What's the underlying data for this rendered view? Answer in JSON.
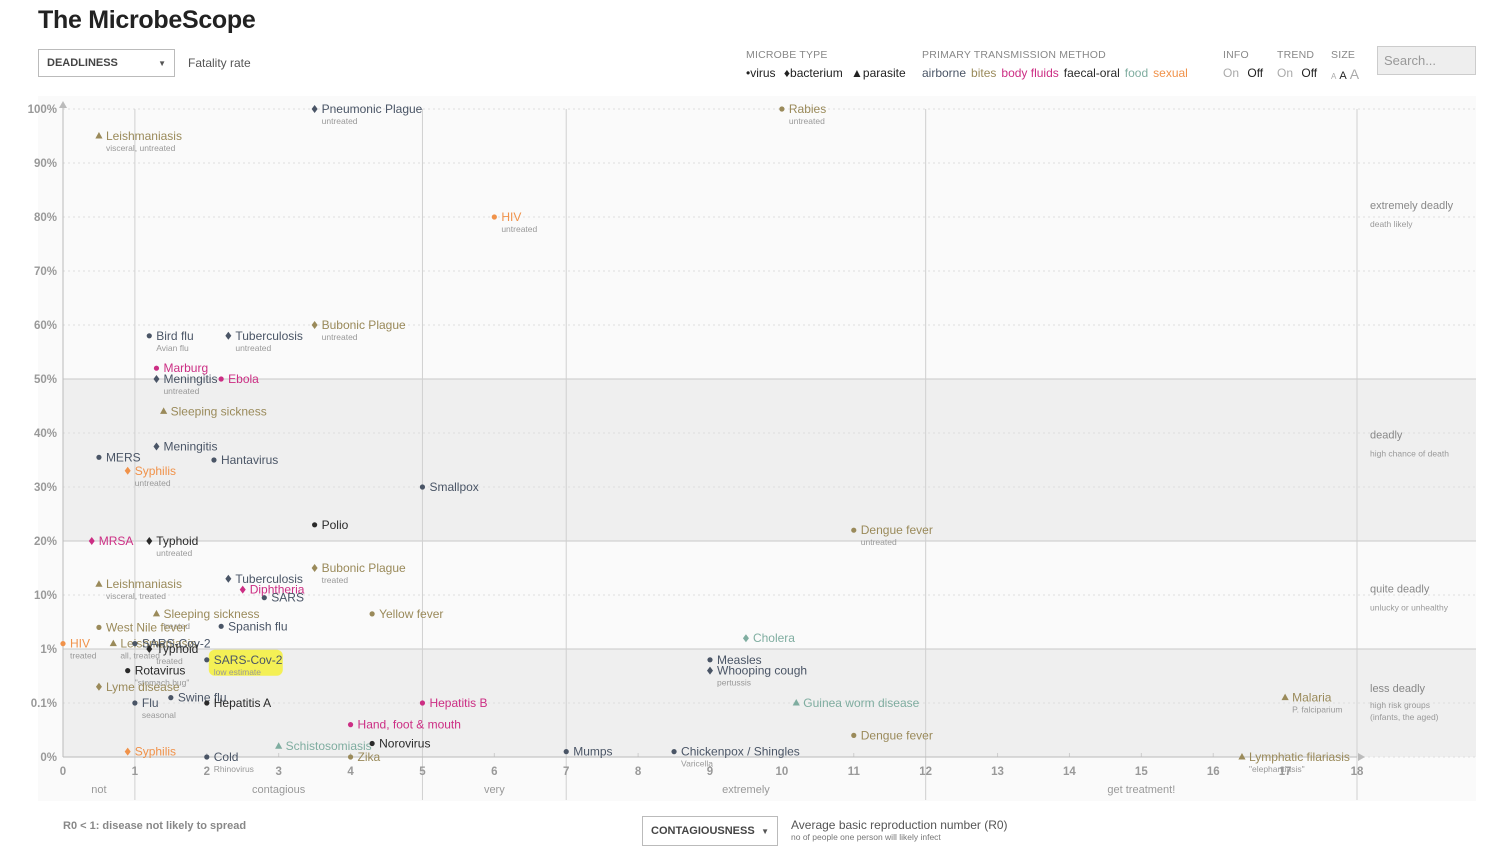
{
  "page": {
    "title": "The MicrobeScope"
  },
  "y_select": {
    "label": "DEADLINESS",
    "description": "Fatality rate"
  },
  "x_select": {
    "label": "CONTAGIOUSNESS",
    "description": "Average basic reproduction number (R0)",
    "description_sub": "no of people one person will likely infect"
  },
  "r0_note": "R0 < 1: disease not likely to spread",
  "controls": {
    "microbe_type": {
      "heading": "MICROBE TYPE",
      "items": [
        "•virus",
        "♦bacterium",
        "▲parasite"
      ]
    },
    "transmission": {
      "heading": "PRIMARY TRANSMISSION METHOD",
      "items": [
        {
          "label": "airborne",
          "color": "#4a5566"
        },
        {
          "label": "bites",
          "color": "#9a8a5a"
        },
        {
          "label": "body fluids",
          "color": "#cc2e84"
        },
        {
          "label": "faecal-oral",
          "color": "#2a2a2a"
        },
        {
          "label": "food",
          "color": "#7fada0"
        },
        {
          "label": "sexual",
          "color": "#f0924a"
        }
      ]
    },
    "info": {
      "heading": "INFO",
      "on": "On",
      "off": "Off"
    },
    "trend": {
      "heading": "TREND",
      "on": "On",
      "off": "Off"
    },
    "size": {
      "heading": "SIZE",
      "items": [
        "A",
        "A",
        "A"
      ]
    },
    "search_placeholder": "Search..."
  },
  "chart_data": {
    "type": "scatter",
    "x_ticks": [
      "0",
      "1",
      "2",
      "3",
      "4",
      "5",
      "6",
      "7",
      "8",
      "9",
      "10",
      "11",
      "12",
      "13",
      "14",
      "15",
      "16",
      "17",
      "18"
    ],
    "y_ticks": [
      "0%",
      "0.1%",
      "1%",
      "10%",
      "20%",
      "30%",
      "40%",
      "50%",
      "60%",
      "70%",
      "80%",
      "90%",
      "100%"
    ],
    "x_range": [
      0,
      18
    ],
    "x_bands": [
      "not",
      "contagious",
      "very",
      "extremely",
      "get treatment!"
    ],
    "y_bands": [
      {
        "label": "extremely deadly",
        "sub": "death likely"
      },
      {
        "label": "deadly",
        "sub": "high chance of death"
      },
      {
        "label": "quite deadly",
        "sub": "unlucky or unhealthy"
      },
      {
        "label": "less deadly",
        "sub": "high risk groups (infants, the aged)"
      }
    ],
    "points": [
      {
        "name": "Pneumonic Plague",
        "sub": "untreated",
        "x": 3.5,
        "y": "100%",
        "yv": 12,
        "type": "bacterium",
        "tx": "airborne"
      },
      {
        "name": "Rabies",
        "sub": "untreated",
        "x": 10,
        "y": "100%",
        "yv": 12,
        "type": "virus",
        "tx": "bites"
      },
      {
        "name": "Leishmaniasis",
        "sub": "visceral, untreated",
        "x": 0.5,
        "y": "95%",
        "yv": 11.5,
        "type": "parasite",
        "tx": "bites"
      },
      {
        "name": "HIV",
        "sub": "untreated",
        "x": 6,
        "y": "80%",
        "yv": 10,
        "type": "virus",
        "tx": "sexual"
      },
      {
        "name": "Bubonic Plague",
        "sub": "untreated",
        "x": 3.5,
        "y": "60%",
        "yv": 8,
        "type": "bacterium",
        "tx": "bites"
      },
      {
        "name": "Bird flu",
        "sub": "Avian flu",
        "x": 1.2,
        "y": "58%",
        "yv": 7.8,
        "type": "virus",
        "tx": "airborne"
      },
      {
        "name": "Tuberculosis",
        "sub": "untreated",
        "x": 2.3,
        "y": "58%",
        "yv": 7.8,
        "type": "bacterium",
        "tx": "airborne"
      },
      {
        "name": "Marburg",
        "sub": "",
        "x": 1.3,
        "y": "52%",
        "yv": 7.2,
        "type": "virus",
        "tx": "body fluids"
      },
      {
        "name": "Meningitis",
        "sub": "untreated",
        "x": 1.3,
        "y": "50%",
        "yv": 7,
        "type": "bacterium",
        "tx": "airborne"
      },
      {
        "name": "Ebola",
        "sub": "",
        "x": 2.2,
        "y": "50%",
        "yv": 7,
        "type": "virus",
        "tx": "body fluids"
      },
      {
        "name": "Sleeping sickness",
        "sub": "",
        "x": 1.4,
        "y": "44%",
        "yv": 6.4,
        "type": "parasite",
        "tx": "bites"
      },
      {
        "name": "Meningitis",
        "sub": "",
        "x": 1.3,
        "y": "37.5%",
        "yv": 5.75,
        "type": "bacterium",
        "tx": "airborne"
      },
      {
        "name": "MERS",
        "sub": "",
        "x": 0.5,
        "y": "35.5%",
        "yv": 5.55,
        "type": "virus",
        "tx": "airborne"
      },
      {
        "name": "Hantavirus",
        "sub": "",
        "x": 2.1,
        "y": "35%",
        "yv": 5.5,
        "type": "virus",
        "tx": "airborne"
      },
      {
        "name": "Syphilis",
        "sub": "untreated",
        "x": 0.9,
        "y": "33%",
        "yv": 5.3,
        "type": "bacterium",
        "tx": "sexual"
      },
      {
        "name": "Smallpox",
        "sub": "",
        "x": 5,
        "y": "30%",
        "yv": 5,
        "type": "virus",
        "tx": "airborne"
      },
      {
        "name": "Polio",
        "sub": "",
        "x": 3.5,
        "y": "23%",
        "yv": 4.3,
        "type": "virus",
        "tx": "faecal-oral"
      },
      {
        "name": "Dengue fever",
        "sub": "untreated",
        "x": 11,
        "y": "22%",
        "yv": 4.2,
        "type": "virus",
        "tx": "bites"
      },
      {
        "name": "MRSA",
        "sub": "",
        "x": 0.4,
        "y": "20%",
        "yv": 4,
        "type": "bacterium",
        "tx": "body fluids"
      },
      {
        "name": "Typhoid",
        "sub": "untreated",
        "x": 1.2,
        "y": "20%",
        "yv": 4,
        "type": "bacterium",
        "tx": "faecal-oral"
      },
      {
        "name": "Bubonic Plague",
        "sub": "treated",
        "x": 3.5,
        "y": "15%",
        "yv": 3.5,
        "type": "bacterium",
        "tx": "bites"
      },
      {
        "name": "Tuberculosis",
        "sub": "",
        "x": 2.3,
        "y": "13%",
        "yv": 3.3,
        "type": "bacterium",
        "tx": "airborne"
      },
      {
        "name": "Leishmaniasis",
        "sub": "visceral, treated",
        "x": 0.5,
        "y": "12%",
        "yv": 3.2,
        "type": "parasite",
        "tx": "bites"
      },
      {
        "name": "Diphtheria",
        "sub": "",
        "x": 2.5,
        "y": "11%",
        "yv": 3.1,
        "type": "bacterium",
        "tx": "body fluids"
      },
      {
        "name": "SARS",
        "sub": "",
        "x": 2.8,
        "y": "9.5%",
        "yv": 2.95,
        "type": "virus",
        "tx": "airborne"
      },
      {
        "name": "Sleeping sickness",
        "sub": "treated",
        "x": 1.3,
        "y": "6.5%",
        "yv": 2.65,
        "type": "parasite",
        "tx": "bites"
      },
      {
        "name": "Yellow fever",
        "sub": "",
        "x": 4.3,
        "y": "6.5%",
        "yv": 2.65,
        "type": "virus",
        "tx": "bites"
      },
      {
        "name": "Spanish flu",
        "sub": "",
        "x": 2.2,
        "y": "4.2%",
        "yv": 2.42,
        "type": "virus",
        "tx": "airborne"
      },
      {
        "name": "West Nile fever",
        "sub": "",
        "x": 0.5,
        "y": "4%",
        "yv": 2.4,
        "type": "virus",
        "tx": "bites"
      },
      {
        "name": "Cholera",
        "sub": "",
        "x": 9.5,
        "y": "2.5%",
        "yv": 2.2,
        "type": "bacterium",
        "tx": "food"
      },
      {
        "name": "HIV",
        "sub": "treated",
        "x": 0,
        "y": "1.3%",
        "yv": 2.1,
        "type": "virus",
        "tx": "sexual"
      },
      {
        "name": "Leishmaniasis",
        "sub": "all, treated",
        "x": 0.7,
        "y": "1.3%",
        "yv": 2.1,
        "type": "parasite",
        "tx": "bites"
      },
      {
        "name": "SARS-Cov-2",
        "sub": "",
        "x": 1.0,
        "y": "1.3%",
        "yv": 2.1,
        "type": "virus",
        "tx": "airborne"
      },
      {
        "name": "Typhoid",
        "sub": "treated",
        "x": 1.2,
        "y": "1%",
        "yv": 2.0,
        "type": "bacterium",
        "tx": "faecal-oral"
      },
      {
        "name": "SARS-Cov-2",
        "sub": "low estimate",
        "x": 2.0,
        "y": "0.8%",
        "yv": 1.8,
        "type": "virus",
        "tx": "airborne",
        "highlight": true
      },
      {
        "name": "Rotavirus",
        "sub": "\"stomach bug\"",
        "x": 0.9,
        "y": "0.6%",
        "yv": 1.6,
        "type": "virus",
        "tx": "faecal-oral"
      },
      {
        "name": "Measles",
        "sub": "",
        "x": 9,
        "y": "0.8%",
        "yv": 1.8,
        "type": "virus",
        "tx": "airborne"
      },
      {
        "name": "Whooping cough",
        "sub": "pertussis",
        "x": 9,
        "y": "0.6%",
        "yv": 1.6,
        "type": "bacterium",
        "tx": "airborne"
      },
      {
        "name": "Lyme disease",
        "sub": "",
        "x": 0.5,
        "y": "0.3%",
        "yv": 1.3,
        "type": "bacterium",
        "tx": "bites"
      },
      {
        "name": "Swine flu",
        "sub": "",
        "x": 1.5,
        "y": "0.2%",
        "yv": 1.1,
        "type": "virus",
        "tx": "airborne"
      },
      {
        "name": "Flu",
        "sub": "seasonal",
        "x": 1.0,
        "y": "0.1%",
        "yv": 1.0,
        "type": "virus",
        "tx": "airborne"
      },
      {
        "name": "Hepatitis A",
        "sub": "",
        "x": 2.0,
        "y": "0.1%",
        "yv": 1.0,
        "type": "virus",
        "tx": "faecal-oral"
      },
      {
        "name": "Hepatitis B",
        "sub": "",
        "x": 5.0,
        "y": "0.1%",
        "yv": 1.0,
        "type": "virus",
        "tx": "body fluids"
      },
      {
        "name": "Guinea worm disease",
        "sub": "",
        "x": 10.2,
        "y": "0.1%",
        "yv": 1.0,
        "type": "parasite",
        "tx": "food"
      },
      {
        "name": "Malaria",
        "sub": "P. falciparium",
        "x": 17,
        "y": "0.2%",
        "yv": 1.1,
        "type": "parasite",
        "tx": "bites"
      },
      {
        "name": "Hand, foot & mouth",
        "sub": "",
        "x": 4.0,
        "y": "0.06%",
        "yv": 0.6,
        "type": "virus",
        "tx": "body fluids"
      },
      {
        "name": "Dengue fever",
        "sub": "",
        "x": 11,
        "y": "0.04%",
        "yv": 0.4,
        "type": "virus",
        "tx": "bites"
      },
      {
        "name": "Schistosomiasis",
        "sub": "",
        "x": 3.0,
        "y": "0.02%",
        "yv": 0.2,
        "type": "parasite",
        "tx": "food"
      },
      {
        "name": "Norovirus",
        "sub": "",
        "x": 4.3,
        "y": "0.03%",
        "yv": 0.25,
        "type": "virus",
        "tx": "faecal-oral"
      },
      {
        "name": "Mumps",
        "sub": "",
        "x": 7,
        "y": "0.01%",
        "yv": 0.1,
        "type": "virus",
        "tx": "airborne"
      },
      {
        "name": "Chickenpox / Shingles",
        "sub": "Varicella",
        "x": 8.5,
        "y": "0.01%",
        "yv": 0.1,
        "type": "virus",
        "tx": "airborne"
      },
      {
        "name": "Syphilis",
        "sub": "",
        "x": 0.9,
        "y": "0.01%",
        "yv": 0.1,
        "type": "bacterium",
        "tx": "sexual"
      },
      {
        "name": "Cold",
        "sub": "Rhinovirus",
        "x": 2.0,
        "y": "0%",
        "yv": 0,
        "type": "virus",
        "tx": "airborne"
      },
      {
        "name": "Zika",
        "sub": "",
        "x": 4.0,
        "y": "0%",
        "yv": 0,
        "type": "virus",
        "tx": "bites"
      },
      {
        "name": "Lymphatic filariasis",
        "sub": "\"elephantiasis\"",
        "x": 16.4,
        "y": "0%",
        "yv": 0,
        "type": "parasite",
        "tx": "bites"
      }
    ]
  }
}
